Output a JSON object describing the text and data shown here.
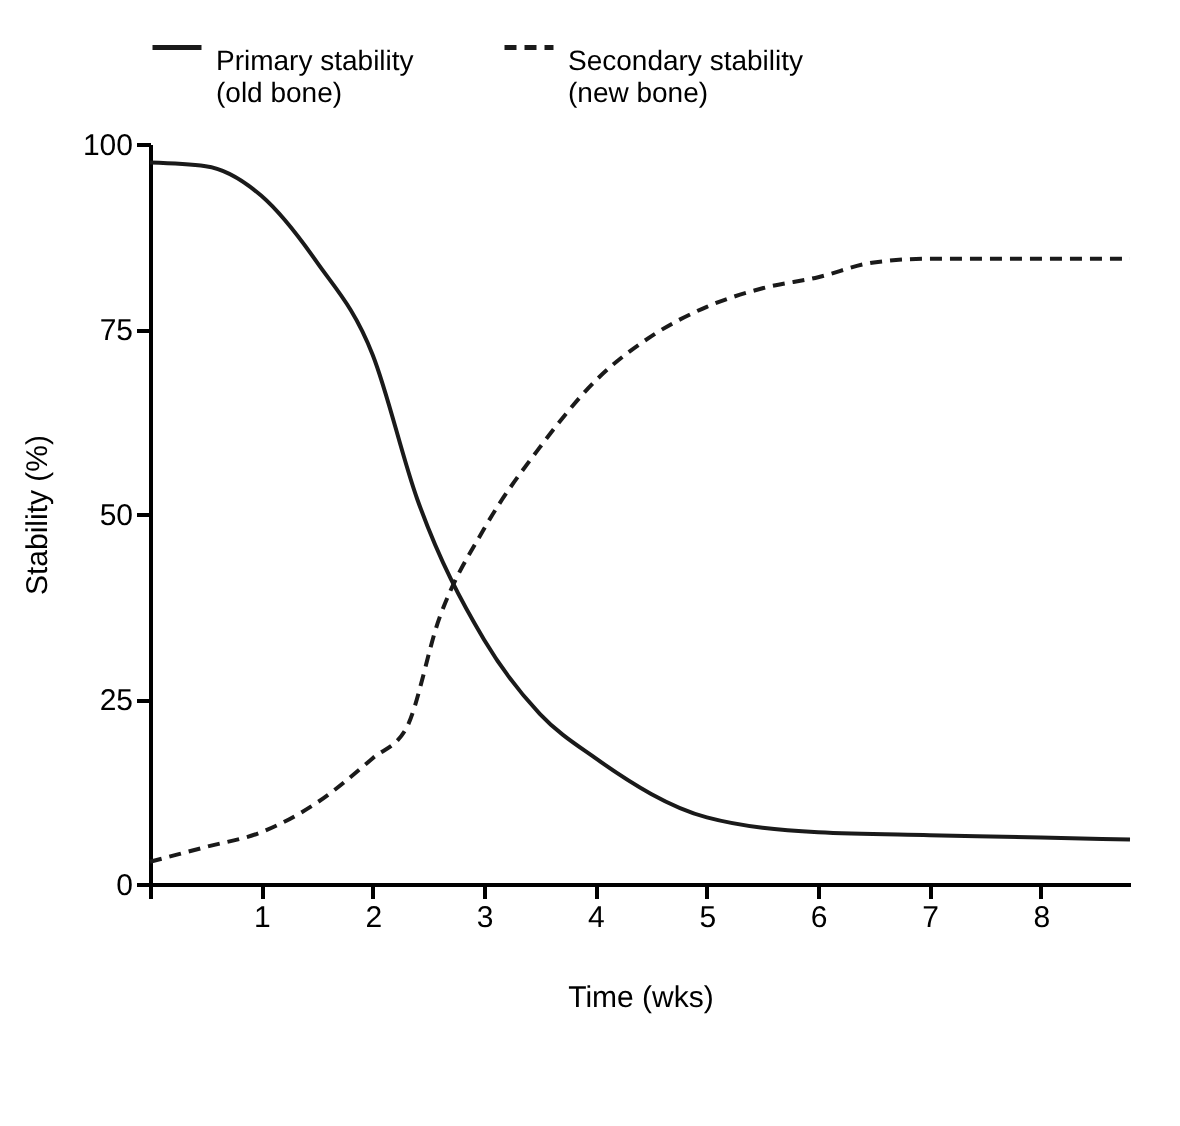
{
  "chart_data": {
    "type": "line",
    "xlabel": "Time (wks)",
    "ylabel": "Stability (%)",
    "xlim": [
      0,
      8.8
    ],
    "xticks": [
      {
        "value": 0,
        "label": null
      },
      1,
      2,
      3,
      4,
      5,
      6,
      7,
      8
    ],
    "ylim": [
      0,
      100
    ],
    "yticks": [
      0,
      25,
      50,
      75,
      100
    ],
    "grid": false,
    "legend": "top",
    "marker": "none",
    "series": [
      {
        "name": "Primary stability\n(old bone)",
        "color": "#1a1a1a",
        "line_style": "solid",
        "x": [
          0,
          0.5,
          1,
          1.5,
          2,
          2.4,
          3,
          3.5,
          4,
          5,
          6,
          7,
          8,
          8.8
        ],
        "values": [
          97.5,
          97,
          93,
          84,
          71.5,
          52,
          33,
          23,
          17,
          9,
          7,
          6.6,
          6.3,
          6
        ]
      },
      {
        "name": "Secondary stability\n(new bone)",
        "color": "#1a1a1a",
        "line_style": "dashed",
        "x": [
          0,
          0.5,
          1,
          1.5,
          2,
          2.3,
          2.6,
          3,
          3.5,
          4,
          4.5,
          5,
          5.5,
          6,
          6.5,
          7,
          8,
          8.8
        ],
        "values": [
          3,
          5,
          7,
          11,
          17,
          21,
          36,
          48,
          59,
          68,
          74,
          78,
          80.5,
          82,
          84,
          84.5,
          84.5,
          84.5
        ]
      }
    ]
  }
}
